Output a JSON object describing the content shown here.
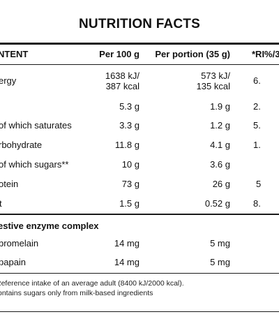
{
  "title": "NUTRITION FACTS",
  "headers": [
    "NTENT",
    "Per 100 g",
    "Per portion (35 g)",
    "*RI%/3"
  ],
  "rows": [
    {
      "label": "ergy",
      "per100": [
        "1638 kJ/",
        "387 kcal"
      ],
      "portion": [
        "573 kJ/",
        "135 kcal"
      ],
      "ri": "6."
    },
    {
      "label": "",
      "per100": [
        "5.3 g"
      ],
      "portion": [
        "1.9 g"
      ],
      "ri": "2."
    },
    {
      "label": "of which saturates",
      "per100": [
        "3.3 g"
      ],
      "portion": [
        "1.2 g"
      ],
      "ri": "5."
    },
    {
      "label": "rbohydrate",
      "per100": [
        "11.8 g"
      ],
      "portion": [
        "4.1 g"
      ],
      "ri": "1."
    },
    {
      "label": "of which sugars**",
      "per100": [
        "10 g"
      ],
      "portion": [
        "3.6 g"
      ],
      "ri": ""
    },
    {
      "label": "otein",
      "per100": [
        "73 g"
      ],
      "portion": [
        "26 g"
      ],
      "ri": "5"
    },
    {
      "label": "t",
      "per100": [
        "1.5 g"
      ],
      "portion": [
        "0.52 g"
      ],
      "ri": "8."
    }
  ],
  "enzyme_section": {
    "heading": "estive enzyme complex",
    "rows": [
      {
        "label": "bromelain",
        "per100": "14 mg",
        "portion": "5 mg"
      },
      {
        "label": "papain",
        "per100": "14 mg",
        "portion": "5 mg"
      }
    ]
  },
  "footnotes": [
    "Reference intake of an average adult (8400 kJ/2000 kcal).",
    "ontains sugars only from milk-based ingredients"
  ]
}
